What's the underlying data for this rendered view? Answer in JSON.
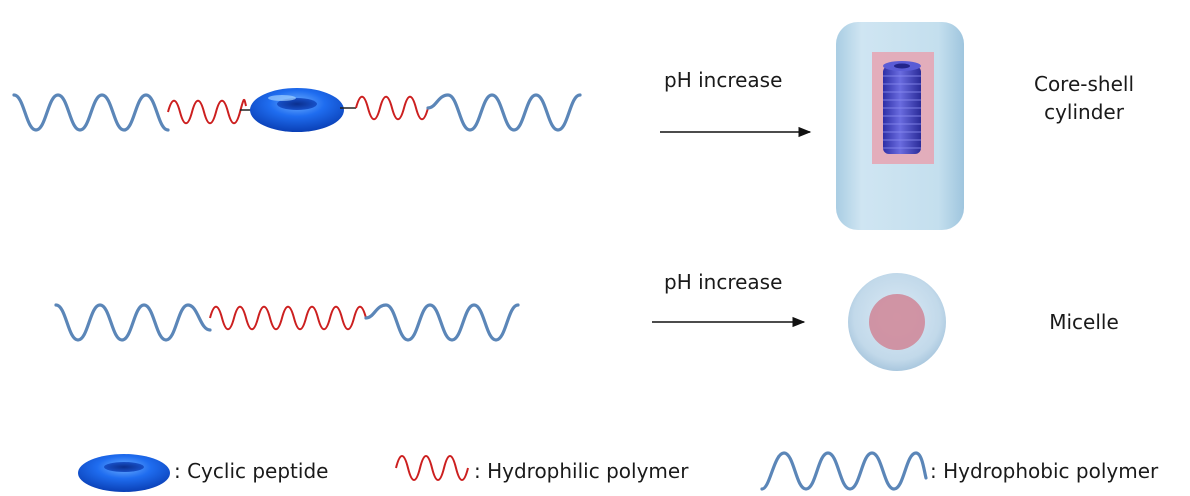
{
  "reactions": [
    {
      "arrow_label": "pH increase",
      "product_label_lines": [
        "Core-shell",
        "cylinder"
      ]
    },
    {
      "arrow_label": "pH increase",
      "product_label_lines": [
        "Micelle"
      ]
    }
  ],
  "legend": {
    "cyclic_peptide": ": Cyclic peptide",
    "hydrophilic": ": Hydrophilic polymer",
    "hydrophobic": ": Hydrophobic polymer"
  },
  "colors": {
    "hydrophobic_wave": "#5b86b8",
    "hydrophilic_wave": "#cc1f1f",
    "peptide_ring": "#1a5fe0",
    "cylinder_shell": "#bcd9ea",
    "cylinder_core": "#e6a3b2",
    "peptide_stack": "#4a4cc7",
    "micelle_shell": "#c6dceb",
    "micelle_core": "#cf8b9b"
  }
}
